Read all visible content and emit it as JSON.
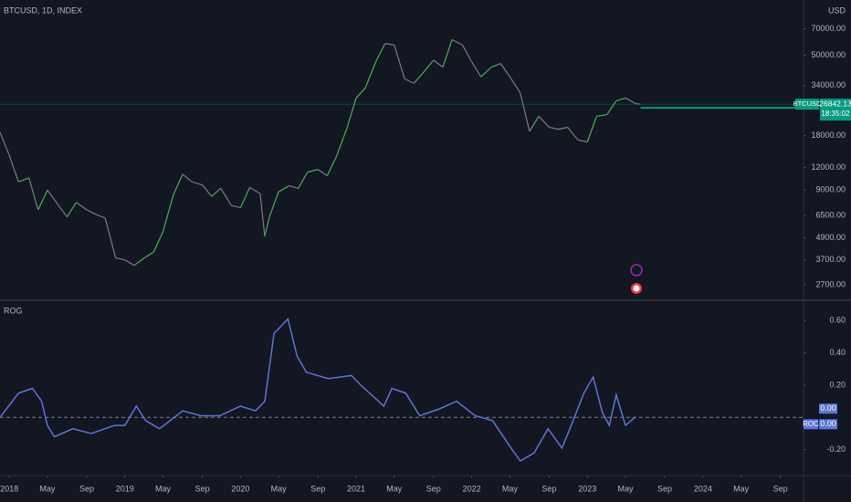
{
  "chart_data": [
    {
      "type": "line",
      "title": "BTCUSD, 1D, INDEX",
      "unit": "USD",
      "log_scale": true,
      "up_color": "#4caf50",
      "down_color": "#787b86",
      "price_line_color": "#089981",
      "x": [
        2017.92,
        2018.0,
        2018.08,
        2018.17,
        2018.25,
        2018.33,
        2018.42,
        2018.5,
        2018.58,
        2018.67,
        2018.75,
        2018.83,
        2018.92,
        2019.0,
        2019.08,
        2019.17,
        2019.25,
        2019.33,
        2019.42,
        2019.5,
        2019.58,
        2019.67,
        2019.75,
        2019.83,
        2019.92,
        2020.0,
        2020.08,
        2020.17,
        2020.21,
        2020.25,
        2020.33,
        2020.42,
        2020.5,
        2020.58,
        2020.67,
        2020.75,
        2020.83,
        2020.92,
        2021.0,
        2021.08,
        2021.17,
        2021.25,
        2021.33,
        2021.42,
        2021.5,
        2021.58,
        2021.67,
        2021.75,
        2021.83,
        2021.92,
        2022.0,
        2022.08,
        2022.17,
        2022.25,
        2022.33,
        2022.42,
        2022.5,
        2022.58,
        2022.67,
        2022.75,
        2022.83,
        2022.92,
        2023.0,
        2023.08,
        2023.17,
        2023.25,
        2023.33,
        2023.42,
        2023.46
      ],
      "values": [
        18800,
        14000,
        10000,
        10500,
        7000,
        9000,
        7500,
        6400,
        7700,
        7000,
        6600,
        6300,
        3800,
        3700,
        3450,
        3800,
        4100,
        5300,
        8500,
        11000,
        10000,
        9600,
        8300,
        9200,
        7400,
        7200,
        9300,
        8600,
        5000,
        6400,
        8800,
        9500,
        9200,
        11300,
        11700,
        10800,
        13800,
        19700,
        29000,
        33000,
        46000,
        58000,
        57000,
        37000,
        35000,
        40000,
        47000,
        43000,
        61000,
        57000,
        46000,
        38000,
        43000,
        45000,
        38000,
        31000,
        19000,
        23000,
        20000,
        19500,
        20000,
        17000,
        16600,
        23000,
        23500,
        28000,
        29000,
        27000,
        26842.13
      ],
      "xlim": [
        2017.92,
        2024.87
      ],
      "ylim": [
        2240,
        101000
      ],
      "yticks": [
        {
          "value": 2700,
          "label": "2700.00"
        },
        {
          "value": 3700,
          "label": "3700.00"
        },
        {
          "value": 4900,
          "label": "4900.00"
        },
        {
          "value": 6500,
          "label": "6500.00"
        },
        {
          "value": 9000,
          "label": "9000.00"
        },
        {
          "value": 12000,
          "label": "12000.00"
        },
        {
          "value": 18000,
          "label": "18000.00"
        },
        {
          "value": 34000,
          "label": "34000.00"
        },
        {
          "value": 50000,
          "label": "50000.00"
        },
        {
          "value": 70000,
          "label": "70000.00"
        }
      ],
      "price_tag": "BTCUSD",
      "last_price": 26842.13,
      "countdown": "18:35:02"
    },
    {
      "type": "line",
      "title": "ROG",
      "x": [
        2017.92,
        2018.08,
        2018.2,
        2018.28,
        2018.33,
        2018.39,
        2018.55,
        2018.71,
        2018.91,
        2019.0,
        2019.1,
        2019.18,
        2019.3,
        2019.5,
        2019.66,
        2019.82,
        2020.0,
        2020.13,
        2020.21,
        2020.29,
        2020.41,
        2020.49,
        2020.57,
        2020.76,
        2020.96,
        2021.04,
        2021.24,
        2021.31,
        2021.43,
        2021.55,
        2021.71,
        2021.87,
        2022.03,
        2022.18,
        2022.34,
        2022.42,
        2022.54,
        2022.66,
        2022.78,
        2022.85,
        2022.97,
        2023.05,
        2023.13,
        2023.19,
        2023.25,
        2023.33,
        2023.41
      ],
      "series": [
        {
          "name": "ROC",
          "color": "#5b75d8",
          "last_label": "0.00",
          "values": [
            0.0,
            0.15,
            0.18,
            0.1,
            -0.05,
            -0.12,
            -0.07,
            -0.1,
            -0.05,
            -0.05,
            0.07,
            -0.02,
            -0.07,
            0.04,
            0.01,
            0.01,
            0.07,
            0.04,
            0.1,
            0.52,
            0.61,
            0.38,
            0.28,
            0.24,
            0.26,
            0.2,
            0.07,
            0.18,
            0.15,
            0.01,
            0.05,
            0.1,
            0.01,
            -0.02,
            -0.19,
            -0.27,
            -0.22,
            -0.07,
            -0.19,
            -0.07,
            0.15,
            0.25,
            0.03,
            -0.05,
            0.14,
            -0.05,
            0.0
          ]
        }
      ],
      "zero_line": {
        "value": 0,
        "label": "0.00"
      },
      "xlim": [
        2017.92,
        2024.87
      ],
      "ylim": [
        -0.355,
        0.715
      ],
      "yticks": [
        {
          "value": -0.2,
          "label": "-0.20"
        },
        {
          "value": 0.2,
          "label": "0.20"
        },
        {
          "value": 0.4,
          "label": "0.40"
        },
        {
          "value": 0.6,
          "label": "0.60"
        }
      ],
      "xticks": [
        2018,
        {
          "value": 2018.33,
          "label": "May"
        },
        {
          "value": 2018.67,
          "label": "Sep"
        },
        2019,
        {
          "value": 2019.33,
          "label": "May"
        },
        {
          "value": 2019.67,
          "label": "Sep"
        },
        2020,
        {
          "value": 2020.33,
          "label": "May"
        },
        {
          "value": 2020.67,
          "label": "Sep"
        },
        2021,
        {
          "value": 2021.33,
          "label": "May"
        },
        {
          "value": 2021.67,
          "label": "Sep"
        },
        2022,
        {
          "value": 2022.33,
          "label": "May"
        },
        {
          "value": 2022.67,
          "label": "Sep"
        },
        2023,
        {
          "value": 2023.33,
          "label": "May"
        },
        {
          "value": 2023.67,
          "label": "Sep"
        },
        2024,
        {
          "value": 2024.33,
          "label": "May"
        },
        {
          "value": 2024.67,
          "label": "Sep"
        }
      ]
    }
  ]
}
